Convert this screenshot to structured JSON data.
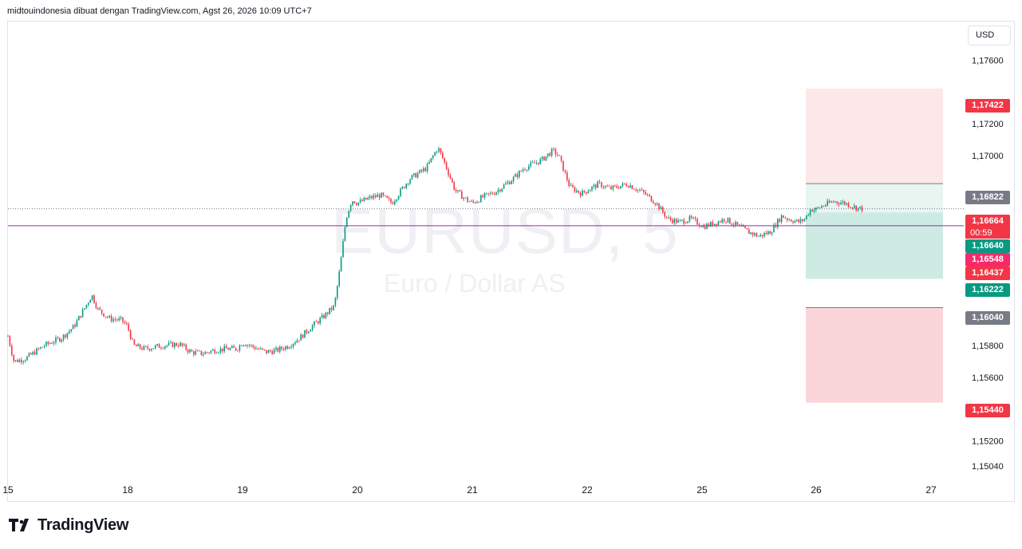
{
  "header": {
    "text": "midtouindonesia dibuat dengan TradingView.com, Agst 26, 2026 10:09 UTC+7"
  },
  "currency_button": {
    "label": "USD"
  },
  "watermark": {
    "symbol": "EURUSD, 5",
    "name": "Euro / Dollar AS"
  },
  "logo": {
    "text": "TradingView",
    "icon": "tradingview-logo-icon"
  },
  "price_tags": {
    "stop_loss": {
      "text": "1,17422",
      "color": "#f23645"
    },
    "position_top": {
      "text": "1,16822",
      "color": "#787b86"
    },
    "last_price": {
      "text": "1,16664",
      "color": "#f23645"
    },
    "countdown": {
      "text": "00:59"
    },
    "entry": {
      "text": "1,16640",
      "color": "#089981"
    },
    "tag_a": {
      "text": "1,16548",
      "color": "#f7296b"
    },
    "tag_b": {
      "text": "1,16437",
      "color": "#f23645"
    },
    "target": {
      "text": "1,16222",
      "color": "#089981"
    },
    "position_bottom": {
      "text": "1,16040",
      "color": "#787b86"
    },
    "stop_bottom": {
      "text": "1,15440",
      "color": "#f23645"
    }
  },
  "chart_data": {
    "type": "candlestick",
    "symbol": "EURUSD",
    "timeframe": "5",
    "x_ticks": [
      "15",
      "18",
      "19",
      "20",
      "21",
      "22",
      "25",
      "26",
      "27"
    ],
    "y_ticks": [
      "1,17600",
      "1,17200",
      "1,17000",
      "1,15800",
      "1,15600",
      "1,15200",
      "1,15040"
    ],
    "ylim": [
      1.1496,
      1.1784
    ],
    "colors": {
      "up": "#089981",
      "down": "#f23645"
    },
    "reference_lines": [
      {
        "value": 1.16664,
        "style": "dotted",
        "color": "#787b86"
      },
      {
        "value": 1.16557,
        "style": "solid",
        "color": "#9c27b0"
      }
    ],
    "zones": [
      {
        "from": 1.16822,
        "to": 1.17422,
        "color": "#fce8e8"
      },
      {
        "from": 1.16222,
        "to": 1.16822,
        "color": "#e8f5f1"
      },
      {
        "from": 1.16222,
        "to": 1.1664,
        "color": "#cdebe3"
      },
      {
        "from": 1.1544,
        "to": 1.1604,
        "color": "#fad6da"
      }
    ],
    "price_path": [
      [
        15.0,
        1.1586
      ],
      [
        15.05,
        1.157
      ],
      [
        15.15,
        1.1572
      ],
      [
        15.3,
        1.158
      ],
      [
        15.45,
        1.1585
      ],
      [
        15.55,
        1.1592
      ],
      [
        15.65,
        1.1605
      ],
      [
        15.7,
        1.1612
      ],
      [
        15.75,
        1.1603
      ],
      [
        15.85,
        1.1597
      ],
      [
        15.95,
        1.1596
      ],
      [
        18.0,
        1.1592
      ],
      [
        18.05,
        1.158
      ],
      [
        18.15,
        1.1578
      ],
      [
        18.3,
        1.158
      ],
      [
        18.45,
        1.1581
      ],
      [
        18.55,
        1.1576
      ],
      [
        18.65,
        1.1575
      ],
      [
        18.75,
        1.1577
      ],
      [
        18.85,
        1.1578
      ],
      [
        18.95,
        1.1578
      ],
      [
        19.0,
        1.1582
      ],
      [
        19.1,
        1.1579
      ],
      [
        19.2,
        1.1576
      ],
      [
        19.3,
        1.1577
      ],
      [
        19.4,
        1.158
      ],
      [
        19.5,
        1.1585
      ],
      [
        19.6,
        1.1592
      ],
      [
        19.7,
        1.1598
      ],
      [
        19.8,
        1.1605
      ],
      [
        19.85,
        1.163
      ],
      [
        19.9,
        1.166
      ],
      [
        19.95,
        1.1672
      ],
      [
        20.0,
        1.167
      ],
      [
        20.1,
        1.1673
      ],
      [
        20.2,
        1.1675
      ],
      [
        20.3,
        1.167
      ],
      [
        20.45,
        1.1685
      ],
      [
        20.6,
        1.1692
      ],
      [
        20.7,
        1.1705
      ],
      [
        20.75,
        1.1697
      ],
      [
        20.85,
        1.1678
      ],
      [
        20.95,
        1.1672
      ],
      [
        21.0,
        1.167
      ],
      [
        21.1,
        1.1674
      ],
      [
        21.2,
        1.1677
      ],
      [
        21.35,
        1.1685
      ],
      [
        21.45,
        1.1692
      ],
      [
        21.6,
        1.1697
      ],
      [
        21.7,
        1.1703
      ],
      [
        21.75,
        1.17
      ],
      [
        21.85,
        1.168
      ],
      [
        21.95,
        1.1676
      ],
      [
        22.0,
        1.1678
      ],
      [
        22.1,
        1.1682
      ],
      [
        22.2,
        1.1679
      ],
      [
        22.35,
        1.1682
      ],
      [
        22.5,
        1.1676
      ],
      [
        22.6,
        1.167
      ],
      [
        22.7,
        1.166
      ],
      [
        22.8,
        1.1658
      ],
      [
        22.9,
        1.166
      ],
      [
        23.0,
        1.1656
      ],
      [
        25.0,
        1.1655
      ],
      [
        25.1,
        1.1657
      ],
      [
        25.2,
        1.166
      ],
      [
        25.3,
        1.1656
      ],
      [
        25.4,
        1.1652
      ],
      [
        25.5,
        1.1649
      ],
      [
        25.6,
        1.1652
      ],
      [
        25.7,
        1.1662
      ],
      [
        25.75,
        1.166
      ],
      [
        25.85,
        1.1658
      ],
      [
        25.9,
        1.166
      ],
      [
        25.95,
        1.1666
      ],
      [
        26.0,
        1.1666
      ],
      [
        26.05,
        1.1668
      ],
      [
        26.15,
        1.1671
      ],
      [
        26.25,
        1.167
      ],
      [
        26.35,
        1.1667
      ],
      [
        26.4,
        1.16664
      ]
    ]
  }
}
